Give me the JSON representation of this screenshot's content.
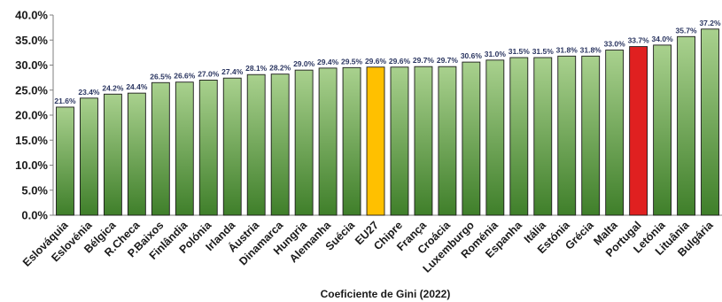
{
  "chart_data": {
    "type": "bar",
    "xlabel": "Coeficiente de Gini  (2022)",
    "ylim": [
      0,
      40
    ],
    "yticks": [
      "0.0%",
      "5.0%",
      "10.0%",
      "15.0%",
      "20.0%",
      "25.0%",
      "30.0%",
      "35.0%",
      "40.0%"
    ],
    "grid": false,
    "categories": [
      "Eslováquia",
      "Eslovénia",
      "Bélgica",
      "R.Checa",
      "P.Baixos",
      "Finlândia",
      "Polónia",
      "Irlanda",
      "Áustria",
      "Dinamarca",
      "Hungria",
      "Alemanha",
      "Suécia",
      "EU27",
      "Chipre",
      "França",
      "Croácia",
      "Luxemburgo",
      "Roménia",
      "Espanha",
      "Itália",
      "Estónia",
      "Grécia",
      "Malta",
      "Portugal",
      "Letónia",
      "Lituânia",
      "Bulgária"
    ],
    "values": [
      21.6,
      23.4,
      24.2,
      24.4,
      26.5,
      26.6,
      27.0,
      27.4,
      28.1,
      28.2,
      29.0,
      29.4,
      29.5,
      29.6,
      29.6,
      29.7,
      29.7,
      30.6,
      31.0,
      31.5,
      31.5,
      31.8,
      31.8,
      33.0,
      33.7,
      34.0,
      35.7,
      37.2
    ],
    "labels": [
      "21.6%",
      "23.4%",
      "24.2%",
      "24.4%",
      "26.5%",
      "26.6%",
      "27.0%",
      "27.4%",
      "28.1%",
      "28.2%",
      "29.0%",
      "29.4%",
      "29.5%",
      "29.6%",
      "29.6%",
      "29.7%",
      "29.7%",
      "30.6%",
      "31.0%",
      "31.5%",
      "31.5%",
      "31.8%",
      "31.8%",
      "33.0%",
      "33.7%",
      "34.0%",
      "35.7%",
      "37.2%"
    ],
    "colors": {
      "default_top": "#a9d18e",
      "default_bottom": "#3f7f2a",
      "highlights": {
        "EU27": "#ffc000",
        "Portugal": "#e02020"
      },
      "label_color": "#2a3560"
    }
  }
}
